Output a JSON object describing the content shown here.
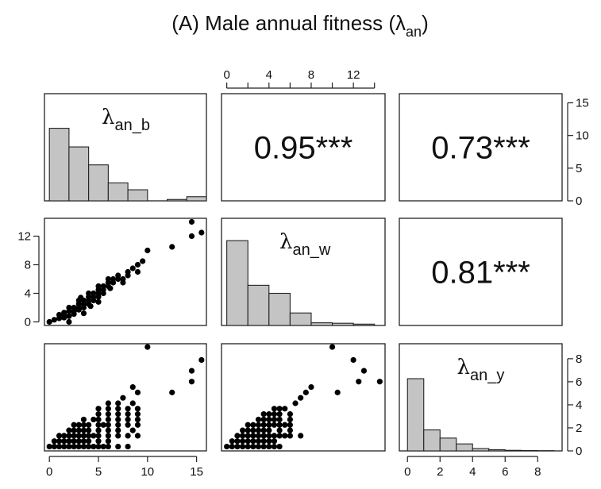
{
  "title": "(A) Male annual fitness (λ",
  "title_sub": "an",
  "title_close": ")",
  "variables": [
    {
      "symbol": "λ",
      "sub": "an_b"
    },
    {
      "symbol": "λ",
      "sub": "an_w"
    },
    {
      "symbol": "λ",
      "sub": "an_y"
    }
  ],
  "correlations": [
    {
      "row": 0,
      "col": 1,
      "text": "0.95***"
    },
    {
      "row": 0,
      "col": 2,
      "text": "0.73***"
    },
    {
      "row": 1,
      "col": 2,
      "text": "0.81***"
    }
  ],
  "chart_data": {
    "type": "scatter",
    "subtype": "pairs-plot",
    "title": "(A) Male annual fitness (λan)",
    "axes": {
      "bottom_col0": {
        "range": [
          -0.5,
          16
        ],
        "ticks": [
          0,
          5,
          10,
          15
        ],
        "tick_labels": [
          "0",
          "5",
          "10",
          "15"
        ]
      },
      "top_col1": {
        "range": [
          -0.5,
          15
        ],
        "ticks": [
          0,
          2,
          4,
          6,
          8,
          10,
          12,
          14
        ],
        "tick_labels": [
          "0",
          "",
          "4",
          "",
          "8",
          "",
          "12",
          ""
        ]
      },
      "left_row1": {
        "range": [
          -0.5,
          14.5
        ],
        "ticks": [
          0,
          4,
          8,
          12
        ],
        "tick_labels": [
          "0",
          "4",
          "8",
          "12"
        ]
      },
      "right_row0": {
        "range": [
          0,
          16
        ],
        "ticks": [
          0,
          5,
          10,
          15
        ],
        "tick_labels": [
          "0",
          "5",
          "10",
          "15"
        ]
      },
      "right_row2": {
        "range": [
          0,
          9
        ],
        "ticks": [
          0,
          2,
          4,
          6,
          8
        ],
        "tick_labels": [
          "0",
          "2",
          "4",
          "6",
          "8"
        ]
      },
      "bottom_col2": {
        "range": [
          -0.5,
          9.5
        ],
        "ticks": [
          0,
          2,
          4,
          6,
          8
        ],
        "tick_labels": [
          "0",
          "2",
          "4",
          "6",
          "8"
        ]
      }
    },
    "histograms": [
      {
        "variable": "λan_b",
        "bin_width": 2,
        "bins_start": 0,
        "counts": [
          10.5,
          7.8,
          5.2,
          2.6,
          1.6,
          0,
          0.2,
          0.6
        ]
      },
      {
        "variable": "λan_w",
        "bin_width": 2,
        "bins_start": 0,
        "counts": [
          9.5,
          4.5,
          3.6,
          1.4,
          0.3,
          0.25,
          0.15
        ]
      },
      {
        "variable": "λan_y",
        "bin_width": 1,
        "bins_start": 0,
        "counts": [
          6.2,
          1.8,
          1.1,
          0.6,
          0.2,
          0.1,
          0.05,
          0.03,
          0.02
        ]
      }
    ],
    "scatter_b_w": [
      [
        0,
        0
      ],
      [
        0.5,
        0.3
      ],
      [
        1,
        0.5
      ],
      [
        1,
        1
      ],
      [
        1.5,
        1
      ],
      [
        1.5,
        0.6
      ],
      [
        2,
        1.5
      ],
      [
        2,
        2
      ],
      [
        2,
        0.8
      ],
      [
        2.5,
        2
      ],
      [
        2.5,
        1.5
      ],
      [
        2.5,
        1.1
      ],
      [
        3,
        2.5
      ],
      [
        3,
        2
      ],
      [
        3,
        3
      ],
      [
        3,
        1.7
      ],
      [
        3.5,
        3
      ],
      [
        3.5,
        2.5
      ],
      [
        3.5,
        2
      ],
      [
        4,
        3.5
      ],
      [
        4,
        3
      ],
      [
        4,
        2.5
      ],
      [
        4,
        4
      ],
      [
        4.5,
        4
      ],
      [
        4.5,
        3.5
      ],
      [
        4.5,
        3
      ],
      [
        5,
        4.5
      ],
      [
        5,
        4
      ],
      [
        5,
        3.5
      ],
      [
        5,
        5
      ],
      [
        5.5,
        5
      ],
      [
        5.5,
        4.5
      ],
      [
        5.5,
        4
      ],
      [
        6,
        5.5
      ],
      [
        6,
        5
      ],
      [
        6,
        6
      ],
      [
        6.5,
        6
      ],
      [
        6.5,
        5.5
      ],
      [
        7,
        6.5
      ],
      [
        7,
        6
      ],
      [
        7.5,
        6
      ],
      [
        7.5,
        5.5
      ],
      [
        8,
        7
      ],
      [
        8,
        6.5
      ],
      [
        8.5,
        7.5
      ],
      [
        9,
        8
      ],
      [
        9,
        7
      ],
      [
        9.5,
        8.5
      ],
      [
        10,
        10
      ],
      [
        12.5,
        10.5
      ],
      [
        14.5,
        14
      ],
      [
        14.5,
        12
      ],
      [
        15.5,
        12.5
      ],
      [
        2,
        0
      ],
      [
        3.5,
        1.2
      ],
      [
        5,
        2.8
      ],
      [
        1.5,
        1.3
      ],
      [
        4.2,
        2.2
      ],
      [
        3.2,
        3.4
      ],
      [
        6.2,
        4.7
      ]
    ],
    "scatter_b_y": [
      [
        0,
        0
      ],
      [
        0.5,
        0
      ],
      [
        1,
        0
      ],
      [
        1.5,
        0
      ],
      [
        2,
        0
      ],
      [
        2.5,
        0
      ],
      [
        3,
        0
      ],
      [
        3.5,
        0
      ],
      [
        4,
        0
      ],
      [
        4.5,
        0
      ],
      [
        5,
        0
      ],
      [
        5.5,
        0
      ],
      [
        6,
        0
      ],
      [
        7,
        0
      ],
      [
        8,
        0
      ],
      [
        0.5,
        0.5
      ],
      [
        1,
        0.5
      ],
      [
        1.5,
        0.5
      ],
      [
        2,
        0.5
      ],
      [
        2.5,
        0.5
      ],
      [
        3,
        0.5
      ],
      [
        3.5,
        0.5
      ],
      [
        4,
        0.5
      ],
      [
        5,
        0.5
      ],
      [
        6,
        0.5
      ],
      [
        1,
        1
      ],
      [
        1.5,
        1
      ],
      [
        2,
        1
      ],
      [
        2.5,
        1
      ],
      [
        3,
        1
      ],
      [
        3.5,
        1
      ],
      [
        4,
        1
      ],
      [
        4.5,
        1
      ],
      [
        5,
        1
      ],
      [
        6,
        1
      ],
      [
        7,
        1
      ],
      [
        8,
        1
      ],
      [
        9,
        1
      ],
      [
        2,
        1.5
      ],
      [
        2.5,
        1.5
      ],
      [
        3,
        1.5
      ],
      [
        3.5,
        1.5
      ],
      [
        4,
        1.5
      ],
      [
        5,
        1.5
      ],
      [
        6,
        1.5
      ],
      [
        7,
        1.5
      ],
      [
        8.5,
        1.5
      ],
      [
        2.5,
        2
      ],
      [
        3,
        2
      ],
      [
        3.5,
        2
      ],
      [
        4,
        2
      ],
      [
        5,
        2
      ],
      [
        5.5,
        2
      ],
      [
        6,
        2
      ],
      [
        7,
        2
      ],
      [
        8,
        2
      ],
      [
        9,
        2
      ],
      [
        3.5,
        2.5
      ],
      [
        4.5,
        2.5
      ],
      [
        5,
        2.5
      ],
      [
        6,
        2.5
      ],
      [
        7,
        2.5
      ],
      [
        8,
        2.5
      ],
      [
        9,
        2.5
      ],
      [
        5,
        3
      ],
      [
        6,
        3
      ],
      [
        7,
        3
      ],
      [
        8,
        3
      ],
      [
        9,
        3
      ],
      [
        5,
        3.5
      ],
      [
        6,
        3.5
      ],
      [
        7,
        3.5
      ],
      [
        8,
        3.5
      ],
      [
        9,
        3.5
      ],
      [
        6,
        4
      ],
      [
        7,
        4
      ],
      [
        8.5,
        4
      ],
      [
        7.5,
        4.5
      ],
      [
        9,
        5
      ],
      [
        8.5,
        5.5
      ],
      [
        12.5,
        5
      ],
      [
        14.5,
        6
      ],
      [
        14.5,
        7
      ],
      [
        15.5,
        8
      ],
      [
        10,
        9.2
      ]
    ],
    "scatter_w_y": [
      [
        0,
        0
      ],
      [
        0.5,
        0
      ],
      [
        1,
        0
      ],
      [
        1.5,
        0
      ],
      [
        2,
        0
      ],
      [
        2.5,
        0
      ],
      [
        3,
        0
      ],
      [
        3.5,
        0
      ],
      [
        4,
        0
      ],
      [
        4.5,
        0
      ],
      [
        5,
        0
      ],
      [
        0.5,
        0.5
      ],
      [
        1,
        0.5
      ],
      [
        1.5,
        0.5
      ],
      [
        2,
        0.5
      ],
      [
        2.5,
        0.5
      ],
      [
        3,
        0.5
      ],
      [
        3.5,
        0.5
      ],
      [
        4,
        0.5
      ],
      [
        4.5,
        0.5
      ],
      [
        1,
        1
      ],
      [
        1.5,
        1
      ],
      [
        2,
        1
      ],
      [
        2.5,
        1
      ],
      [
        3,
        1
      ],
      [
        3.5,
        1
      ],
      [
        4,
        1
      ],
      [
        4.5,
        1
      ],
      [
        5,
        1
      ],
      [
        5.5,
        1
      ],
      [
        6,
        1
      ],
      [
        7,
        1
      ],
      [
        1.5,
        1.5
      ],
      [
        2,
        1.5
      ],
      [
        2.5,
        1.5
      ],
      [
        3,
        1.5
      ],
      [
        3.5,
        1.5
      ],
      [
        4,
        1.5
      ],
      [
        5,
        1.5
      ],
      [
        6,
        1.5
      ],
      [
        2,
        2
      ],
      [
        2.5,
        2
      ],
      [
        3,
        2
      ],
      [
        3.5,
        2
      ],
      [
        4,
        2
      ],
      [
        4.5,
        2
      ],
      [
        5,
        2
      ],
      [
        5.5,
        2
      ],
      [
        6,
        2
      ],
      [
        3,
        2.5
      ],
      [
        3.5,
        2.5
      ],
      [
        4,
        2.5
      ],
      [
        4.5,
        2.5
      ],
      [
        5,
        2.5
      ],
      [
        6,
        2.5
      ],
      [
        3.5,
        3
      ],
      [
        4,
        3
      ],
      [
        4.5,
        3
      ],
      [
        5,
        3
      ],
      [
        6,
        3
      ],
      [
        4.5,
        3.5
      ],
      [
        5,
        3.5
      ],
      [
        5.5,
        3.5
      ],
      [
        6.5,
        4
      ],
      [
        7,
        4.5
      ],
      [
        7.5,
        5
      ],
      [
        8,
        5.5
      ],
      [
        10.5,
        5
      ],
      [
        12.5,
        6
      ],
      [
        13,
        7
      ],
      [
        12,
        8
      ],
      [
        14.5,
        6
      ],
      [
        10,
        9.2
      ]
    ]
  }
}
